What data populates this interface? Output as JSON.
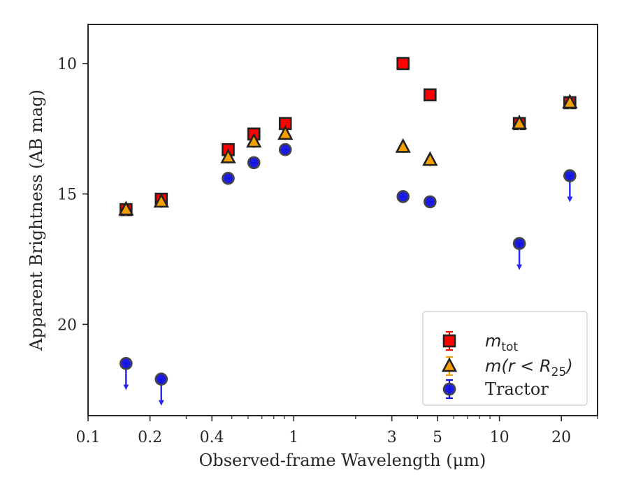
{
  "chart_data": {
    "type": "scatter",
    "xlabel": "Observed-frame Wavelength (μm)",
    "ylabel": "Apparent Brightness (AB mag)",
    "x_scale": "log",
    "xlim": [
      0.1,
      30
    ],
    "ylim": [
      23.5,
      8.5
    ],
    "y_inverted": true,
    "x_ticks": [
      0.1,
      0.2,
      0.4,
      1,
      3,
      5,
      10,
      20
    ],
    "x_tick_labels": [
      "0.1",
      "0.2",
      "0.4",
      "1",
      "3",
      "5",
      "10",
      "20"
    ],
    "y_ticks": [
      10,
      15,
      20
    ],
    "y_tick_labels": [
      "10",
      "15",
      "20"
    ],
    "legend_position": "lower-right",
    "series": [
      {
        "name_main": "m",
        "name_sub": "tot",
        "legend_label": "m_tot",
        "marker": "square",
        "color": "#ff0000",
        "edge_color": "#222222",
        "x": [
          0.153,
          0.227,
          0.48,
          0.64,
          0.91,
          3.4,
          4.6,
          12.5,
          22.0
        ],
        "y": [
          15.6,
          15.2,
          13.3,
          12.7,
          12.3,
          10.0,
          11.2,
          12.3,
          11.5
        ],
        "upper_limit": [
          false,
          false,
          false,
          false,
          false,
          false,
          false,
          false,
          false
        ]
      },
      {
        "name_main": "m",
        "name_paren": "(r < R",
        "name_sub": "25",
        "name_close": ")",
        "legend_label": "m(r < R_25)",
        "marker": "triangle",
        "color": "#f5a000",
        "edge_color": "#222222",
        "x": [
          0.153,
          0.227,
          0.48,
          0.64,
          0.91,
          3.4,
          4.6,
          12.5,
          22.0
        ],
        "y": [
          15.6,
          15.3,
          13.6,
          13.0,
          12.7,
          13.2,
          13.7,
          12.3,
          11.5
        ],
        "upper_limit": [
          false,
          false,
          false,
          false,
          false,
          false,
          false,
          false,
          false
        ]
      },
      {
        "legend_label": "Tractor",
        "marker": "circle",
        "color": "#1010e0",
        "edge_color": "#444444",
        "arrow_color": "#2a2aee",
        "x": [
          0.153,
          0.227,
          0.48,
          0.64,
          0.91,
          3.4,
          4.6,
          12.5,
          22.0
        ],
        "y": [
          21.5,
          22.1,
          14.4,
          13.8,
          13.3,
          15.1,
          15.3,
          16.9,
          14.3
        ],
        "upper_limit": [
          true,
          true,
          false,
          false,
          false,
          false,
          false,
          true,
          true
        ]
      }
    ]
  }
}
